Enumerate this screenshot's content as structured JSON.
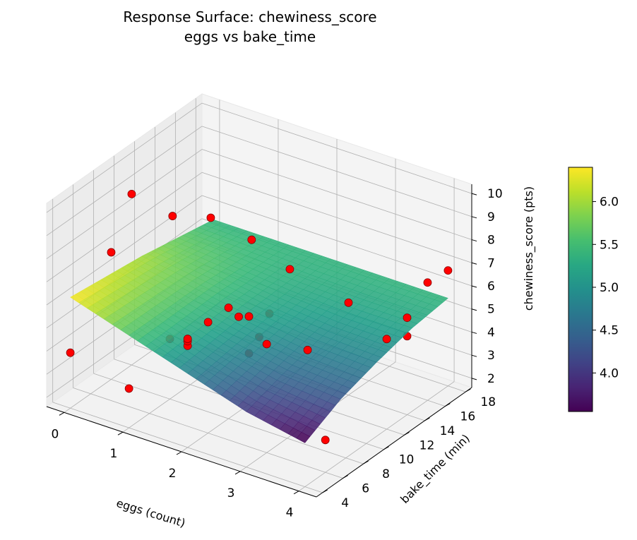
{
  "chart_data": {
    "type": "surface3d",
    "title": "Response Surface: chewiness_score",
    "subtitle": "eggs vs bake_time",
    "xlabel": "eggs (count)",
    "ylabel": "bake_time (min)",
    "zlabel": "chewiness_score (pts)",
    "xlim": [
      -0.3,
      4.3
    ],
    "ylim": [
      3.4,
      18.6
    ],
    "zlim": [
      1.6,
      10.4
    ],
    "x_ticks": [
      0,
      1,
      2,
      3,
      4
    ],
    "y_ticks": [
      4,
      6,
      8,
      10,
      12,
      14,
      16,
      18
    ],
    "z_ticks": [
      2,
      3,
      4,
      5,
      6,
      7,
      8,
      9,
      10
    ],
    "grid": true,
    "surface": {
      "colormap": "viridis",
      "x_range": [
        0,
        4
      ],
      "y_range": [
        4,
        18
      ],
      "z_grid": [
        [
          6.4,
          5.6,
          4.8,
          4.0,
          3.5
        ],
        [
          6.2,
          5.6,
          5.0,
          4.5,
          4.3
        ],
        [
          6.0,
          5.6,
          5.2,
          4.9,
          4.8
        ],
        [
          5.7,
          5.5,
          5.3,
          5.2,
          5.2
        ],
        [
          5.4,
          5.4,
          5.4,
          5.4,
          5.4
        ]
      ]
    },
    "colorbar": {
      "min": 3.55,
      "max": 6.4,
      "ticks": [
        "4.0",
        "4.5",
        "5.0",
        "5.5",
        "6.0"
      ]
    },
    "points": {
      "color": "#ff0000",
      "x": [
        0,
        0,
        0,
        0,
        1,
        1,
        1,
        1,
        2,
        2,
        2,
        2,
        2,
        2,
        2,
        2,
        2,
        2,
        2,
        3,
        3,
        3,
        4,
        4,
        4,
        4,
        4,
        4
      ],
      "y": [
        4,
        8,
        10,
        14,
        4,
        8,
        12,
        16,
        4,
        4,
        4,
        6,
        8,
        9,
        10,
        10,
        11,
        12,
        14,
        6,
        10,
        14,
        6,
        12,
        14,
        14,
        16,
        18
      ],
      "z": [
        4.0,
        7.1,
        9.0,
        6.8,
        3.3,
        4.2,
        8.2,
        6.0,
        6.0,
        6.2,
        6.3,
        6.4,
        6.4,
        5.7,
        3.8,
        5.4,
        4.2,
        4.9,
        6.2,
        6.3,
        4.8,
        5.6,
        3.0,
        5.5,
        5.8,
        5.0,
        6.7,
        6.6
      ]
    }
  }
}
